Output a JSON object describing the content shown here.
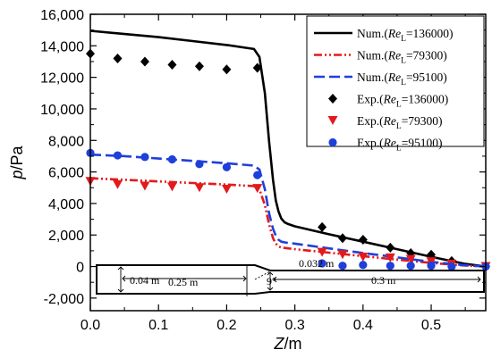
{
  "chart_data": {
    "type": "line",
    "xlabel": {
      "main": "Z",
      "unit": "/m"
    },
    "ylabel": {
      "main": "p",
      "unit": "/Pa"
    },
    "xlim": [
      0,
      0.58
    ],
    "ylim": [
      -2800,
      16000
    ],
    "xticks": [
      0.0,
      0.1,
      0.2,
      0.3,
      0.4,
      0.5
    ],
    "xtick_labels": [
      "0.0",
      "0.1",
      "0.2",
      "0.3",
      "0.4",
      "0.5"
    ],
    "yticks": [
      -2000,
      0,
      2000,
      4000,
      6000,
      8000,
      10000,
      12000,
      14000,
      16000
    ],
    "ytick_labels": [
      "-2,000",
      "0",
      "2,000",
      "4,000",
      "6,000",
      "8,000",
      "10,000",
      "12,000",
      "14,000",
      "16,000"
    ],
    "grid": false,
    "legend_position": "top-right",
    "series": [
      {
        "name": "Num.(ReL=136000)",
        "legend": {
          "prefix": "Num.(",
          "re": "Re",
          "sub": "L",
          "suffix": "=136000)"
        },
        "kind": "line",
        "color": "#000000",
        "dash": "solid",
        "x": [
          0,
          0.05,
          0.1,
          0.15,
          0.2,
          0.24,
          0.248,
          0.256,
          0.262,
          0.268,
          0.272,
          0.276,
          0.28,
          0.285,
          0.29,
          0.3,
          0.35,
          0.4,
          0.45,
          0.5,
          0.55,
          0.58
        ],
        "y": [
          14950,
          14750,
          14550,
          14300,
          14050,
          13800,
          13300,
          11000,
          8000,
          5500,
          4200,
          3500,
          3050,
          2800,
          2700,
          2550,
          2050,
          1580,
          1100,
          620,
          170,
          0
        ]
      },
      {
        "name": "Num.(ReL=79300)",
        "legend": {
          "prefix": "Num.(",
          "re": "Re",
          "sub": "L",
          "suffix": "=79300)"
        },
        "kind": "line",
        "color": "#e31a1c",
        "dash": "dashdotdot",
        "x": [
          0,
          0.05,
          0.1,
          0.15,
          0.2,
          0.24,
          0.248,
          0.256,
          0.262,
          0.268,
          0.272,
          0.276,
          0.28,
          0.285,
          0.29,
          0.3,
          0.35,
          0.4,
          0.45,
          0.5,
          0.55,
          0.58
        ],
        "y": [
          5600,
          5500,
          5400,
          5300,
          5200,
          5100,
          4900,
          3900,
          2700,
          1800,
          1450,
          1280,
          1200,
          1180,
          1150,
          1100,
          880,
          660,
          440,
          230,
          60,
          0
        ]
      },
      {
        "name": "Num.(ReL=95100)",
        "legend": {
          "prefix": "Num.(",
          "re": "Re",
          "sub": "L",
          "suffix": "=95100)"
        },
        "kind": "line",
        "color": "#1f3fdb",
        "dash": "dash",
        "x": [
          0,
          0.05,
          0.1,
          0.15,
          0.2,
          0.24,
          0.248,
          0.256,
          0.262,
          0.268,
          0.272,
          0.276,
          0.28,
          0.285,
          0.29,
          0.3,
          0.35,
          0.4,
          0.45,
          0.5,
          0.55,
          0.58
        ],
        "y": [
          7100,
          7000,
          6850,
          6700,
          6550,
          6400,
          6150,
          4900,
          3400,
          2400,
          1950,
          1700,
          1580,
          1530,
          1500,
          1450,
          1150,
          860,
          580,
          300,
          80,
          0
        ]
      },
      {
        "name": "Exp.(ReL=136000)",
        "legend": {
          "prefix": "Exp.(",
          "re": "Re",
          "sub": "L",
          "suffix": "=136000)"
        },
        "kind": "marker",
        "marker": "diamond",
        "color": "#000000",
        "x": [
          0.0,
          0.04,
          0.08,
          0.12,
          0.16,
          0.2,
          0.245,
          0.34,
          0.37,
          0.4,
          0.44,
          0.47,
          0.5,
          0.53,
          0.58
        ],
        "y": [
          13500,
          13200,
          13000,
          12800,
          12700,
          12500,
          12600,
          2500,
          1800,
          1700,
          1200,
          850,
          750,
          350,
          0
        ]
      },
      {
        "name": "Exp.(ReL=79300)",
        "legend": {
          "prefix": "Exp.(",
          "re": "Re",
          "sub": "L",
          "suffix": "=79300)"
        },
        "kind": "marker",
        "marker": "triangle-down",
        "color": "#e31a1c",
        "x": [
          0.0,
          0.04,
          0.08,
          0.12,
          0.16,
          0.2,
          0.245,
          0.34,
          0.37,
          0.4,
          0.44,
          0.47,
          0.5,
          0.53,
          0.58
        ],
        "y": [
          5400,
          5200,
          5100,
          5050,
          5000,
          4900,
          4950,
          900,
          750,
          600,
          550,
          450,
          300,
          150,
          0
        ]
      },
      {
        "name": "Exp.(ReL=95100)",
        "legend": {
          "prefix": "Exp.(",
          "re": "Re",
          "sub": "L",
          "suffix": "=95100)"
        },
        "kind": "marker",
        "marker": "circle",
        "color": "#1f3fdb",
        "x": [
          0.0,
          0.04,
          0.08,
          0.12,
          0.16,
          0.2,
          0.245,
          0.34,
          0.37,
          0.4,
          0.44,
          0.47,
          0.5,
          0.53,
          0.58
        ],
        "y": [
          7200,
          7050,
          6950,
          6800,
          6500,
          6300,
          5800,
          200,
          50,
          100,
          50,
          50,
          50,
          0,
          0
        ]
      }
    ],
    "inset": {
      "labels": {
        "d1": "0.04 m",
        "l1": "0.25 m",
        "angle": "9°",
        "d2": "0.032 m",
        "l2": "0.3 m"
      }
    }
  }
}
